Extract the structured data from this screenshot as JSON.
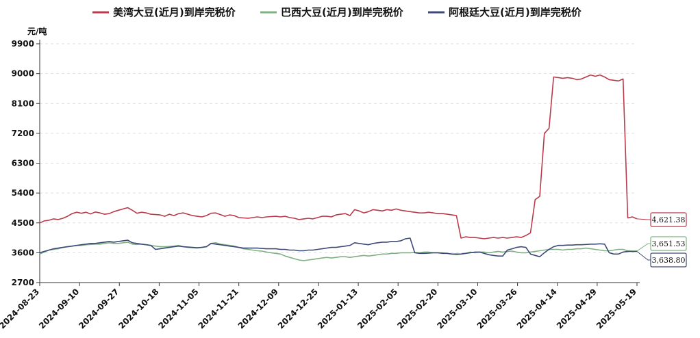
{
  "chart_data": {
    "type": "line",
    "y_unit": "元/吨",
    "ylim": [
      2700,
      9900
    ],
    "y_ticks": [
      2700,
      3600,
      4500,
      5400,
      6300,
      7200,
      8100,
      9000,
      9900
    ],
    "x_tick_labels": [
      "2024-08-23",
      "2024-09-10",
      "2024-09-27",
      "2024-10-18",
      "2024-11-05",
      "2024-11-21",
      "2024-12-09",
      "2024-12-25",
      "2025-01-13",
      "2025-02-05",
      "2025-02-20",
      "2025-03-10",
      "2025-03-26",
      "2025-04-14",
      "2025-04-29",
      "2025-05-19"
    ],
    "grid": "horizontal dashed",
    "legend_position": "top",
    "series": [
      {
        "name": "美湾大豆(近月)到岸完税价",
        "color": "#b83a4b",
        "end_label": "4,621.38",
        "values": [
          4500,
          4560,
          4580,
          4620,
          4600,
          4640,
          4700,
          4780,
          4820,
          4790,
          4820,
          4770,
          4830,
          4800,
          4760,
          4780,
          4840,
          4880,
          4920,
          4960,
          4880,
          4790,
          4820,
          4800,
          4760,
          4750,
          4740,
          4700,
          4760,
          4720,
          4780,
          4800,
          4760,
          4720,
          4700,
          4680,
          4720,
          4790,
          4800,
          4750,
          4700,
          4740,
          4720,
          4660,
          4650,
          4640,
          4660,
          4680,
          4660,
          4680,
          4690,
          4700,
          4680,
          4700,
          4660,
          4640,
          4600,
          4620,
          4640,
          4620,
          4660,
          4700,
          4700,
          4680,
          4740,
          4760,
          4780,
          4720,
          4900,
          4860,
          4800,
          4840,
          4900,
          4880,
          4860,
          4900,
          4880,
          4920,
          4880,
          4860,
          4840,
          4820,
          4800,
          4800,
          4820,
          4800,
          4780,
          4780,
          4760,
          4740,
          4720,
          4040,
          4080,
          4060,
          4060,
          4040,
          4020,
          4040,
          4060,
          4040,
          4060,
          4040,
          4060,
          4080,
          4060,
          4120,
          4200,
          5200,
          5300,
          7200,
          7350,
          8900,
          8880,
          8860,
          8880,
          8860,
          8820,
          8840,
          8900,
          8960,
          8920,
          8960,
          8900,
          8820,
          8800,
          8780,
          8840,
          4650,
          4680,
          4621.38
        ]
      },
      {
        "name": "巴西大豆(近月)到岸完税价",
        "color": "#7fb083",
        "end_label": "3,651.53",
        "values": [
          3560,
          3620,
          3680,
          3700,
          3720,
          3760,
          3780,
          3800,
          3820,
          3820,
          3840,
          3850,
          3860,
          3860,
          3880,
          3900,
          3880,
          3880,
          3900,
          3920,
          3860,
          3850,
          3860,
          3840,
          3820,
          3800,
          3780,
          3780,
          3790,
          3800,
          3820,
          3780,
          3760,
          3750,
          3740,
          3760,
          3780,
          3880,
          3900,
          3860,
          3840,
          3820,
          3800,
          3760,
          3720,
          3700,
          3680,
          3660,
          3650,
          3620,
          3600,
          3580,
          3560,
          3500,
          3460,
          3420,
          3380,
          3360,
          3380,
          3400,
          3420,
          3440,
          3460,
          3440,
          3460,
          3480,
          3480,
          3460,
          3480,
          3500,
          3520,
          3500,
          3520,
          3540,
          3560,
          3560,
          3580,
          3580,
          3600,
          3600,
          3600,
          3610,
          3600,
          3620,
          3620,
          3600,
          3600,
          3600,
          3580,
          3560,
          3540,
          3560,
          3580,
          3620,
          3600,
          3620,
          3620,
          3600,
          3620,
          3640,
          3620,
          3640,
          3650,
          3620,
          3600,
          3600,
          3620,
          3640,
          3660,
          3680,
          3700,
          3700,
          3700,
          3680,
          3700,
          3700,
          3720,
          3720,
          3740,
          3720,
          3700,
          3680,
          3660,
          3660,
          3680,
          3700,
          3700,
          3660,
          3651.53,
          3651.53
        ]
      },
      {
        "name": "阿根廷大豆(近月)到岸完税价",
        "color": "#3d4a78",
        "end_label": "3,638.80",
        "values": [
          3600,
          3640,
          3680,
          3720,
          3740,
          3760,
          3780,
          3800,
          3820,
          3840,
          3860,
          3880,
          3880,
          3900,
          3920,
          3940,
          3920,
          3940,
          3960,
          3980,
          3900,
          3880,
          3860,
          3840,
          3820,
          3700,
          3720,
          3740,
          3760,
          3780,
          3800,
          3780,
          3770,
          3760,
          3750,
          3760,
          3780,
          3880,
          3860,
          3840,
          3820,
          3800,
          3780,
          3760,
          3740,
          3740,
          3740,
          3740,
          3730,
          3720,
          3720,
          3720,
          3700,
          3700,
          3680,
          3680,
          3660,
          3660,
          3680,
          3680,
          3700,
          3720,
          3740,
          3760,
          3760,
          3780,
          3800,
          3820,
          3900,
          3880,
          3860,
          3840,
          3880,
          3900,
          3920,
          3920,
          3940,
          3940,
          3960,
          4020,
          4040,
          3600,
          3580,
          3580,
          3590,
          3600,
          3600,
          3580,
          3580,
          3560,
          3560,
          3560,
          3580,
          3600,
          3620,
          3620,
          3580,
          3540,
          3520,
          3500,
          3500,
          3680,
          3720,
          3760,
          3780,
          3760,
          3560,
          3520,
          3480,
          3600,
          3700,
          3780,
          3820,
          3820,
          3830,
          3830,
          3840,
          3840,
          3850,
          3860,
          3860,
          3870,
          3860,
          3600,
          3560,
          3560,
          3620,
          3640,
          3638.8,
          3638.8
        ]
      }
    ]
  }
}
